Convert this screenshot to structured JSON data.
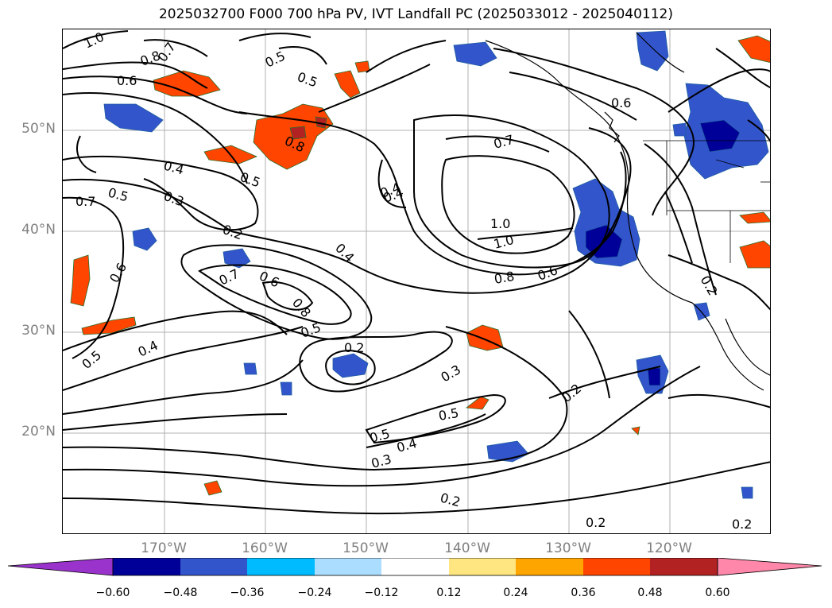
{
  "title": "2025032700 F000 700 hPa PV, IVT Landfall PC (2025033012 - 2025040112)",
  "lat_labels": [
    "50°N",
    "40°N",
    "30°N",
    "20°N"
  ],
  "lon_labels": [
    "170°W",
    "160°W",
    "150°W",
    "140°W",
    "130°W",
    "120°W"
  ],
  "colorbar": {
    "ticks": [
      "−0.60",
      "−0.48",
      "−0.36",
      "−0.24",
      "−0.12",
      "0.12",
      "0.24",
      "0.36",
      "0.48",
      "0.60"
    ],
    "colors": [
      "#9933cc",
      "#000099",
      "#3355cc",
      "#00bbff",
      "#aaddff",
      "#ffffff",
      "#ffe680",
      "#ffa500",
      "#ff4500",
      "#b22222",
      "#ff88aa"
    ]
  },
  "contour_labels": [
    "1.0",
    "0.8",
    "0.7",
    "0.6",
    "0.5",
    "0.5",
    "0.8",
    "0.6",
    "0.4",
    "0.3",
    "0.2",
    "0.5",
    "0.7",
    "0.5",
    "0.4",
    "0.7",
    "1.0",
    "1.0",
    "0.8",
    "0.6",
    "0.6",
    "0.7",
    "0.6",
    "0.8",
    "0.5",
    "0.4",
    "0.2",
    "0.5",
    "0.4",
    "0.3",
    "0.2",
    "0.5",
    "0.5",
    "0.4",
    "0.3",
    "0.2",
    "0.2",
    "0.2",
    "0.2",
    "0.4"
  ]
}
